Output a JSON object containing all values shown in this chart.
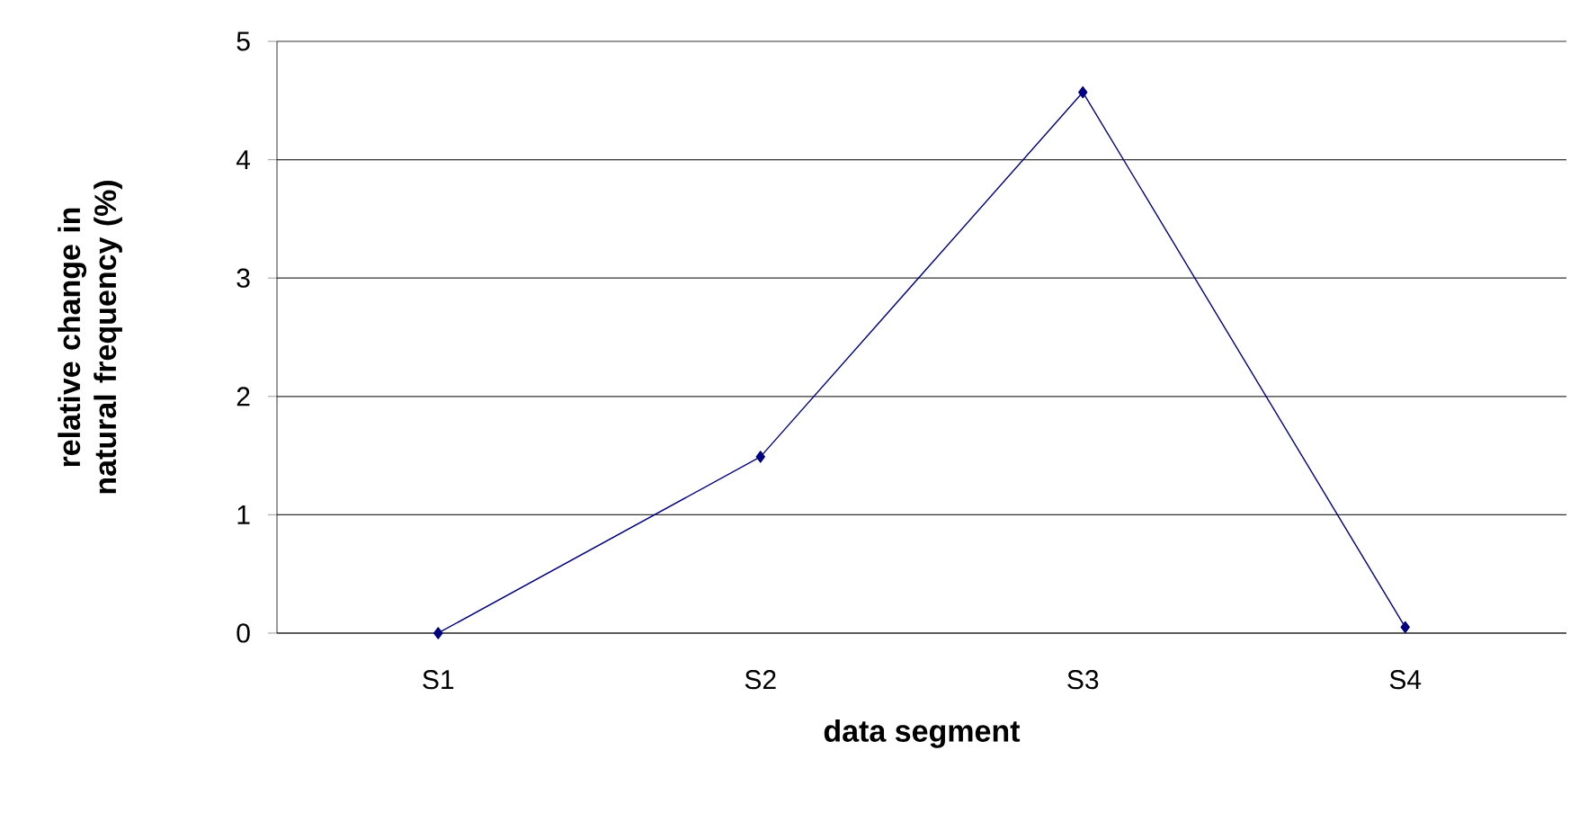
{
  "chart_data": {
    "type": "line",
    "xlabel": "data segment",
    "ylabel": "relative change in natural frequency (%)",
    "categories": [
      "S1",
      "S2",
      "S3",
      "S4"
    ],
    "series": [
      {
        "color": "#000080",
        "values": [
          0,
          1.49,
          4.57,
          0.05
        ]
      }
    ],
    "ylim": [
      0,
      5
    ],
    "yticks": [
      0,
      1,
      2,
      3,
      4,
      5
    ],
    "grid": "y",
    "marker": "diamond",
    "line_style": "solid"
  }
}
